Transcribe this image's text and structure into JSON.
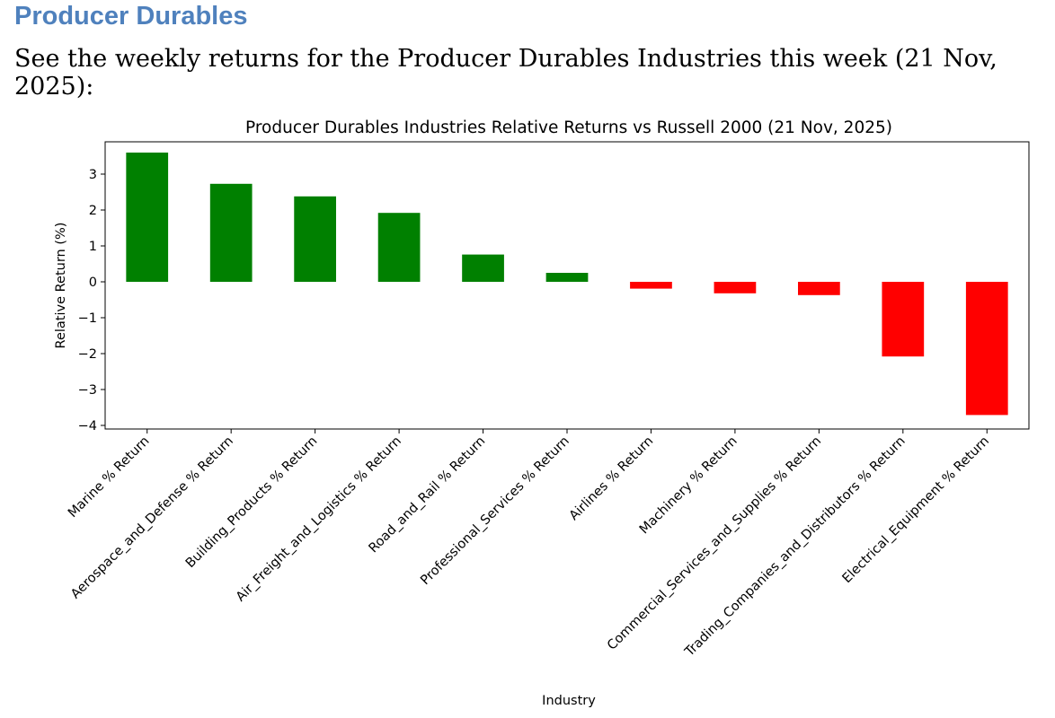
{
  "section": {
    "heading": "Producer Durables",
    "intro": "See the weekly returns for the Producer Durables Industries this week (21 Nov, 2025):"
  },
  "colors": {
    "heading": "#4f81bd",
    "positive": "#008000",
    "negative": "#ff0000"
  },
  "chart_data": {
    "type": "bar",
    "title": "Producer Durables Industries Relative Returns vs Russell 2000 (21 Nov, 2025)",
    "xlabel": "Industry",
    "ylabel": "Relative Return (%)",
    "ylim": [
      -4.1,
      3.9
    ],
    "yticks": [
      3,
      2,
      1,
      0,
      -1,
      -2,
      -3,
      -4
    ],
    "ytick_labels": [
      "3",
      "2",
      "1",
      "0",
      "−1",
      "−2",
      "−3",
      "−4"
    ],
    "categories": [
      "Marine % Return",
      "Aerospace_and_Defense % Return",
      "Building_Products % Return",
      "Air_Freight_and_Logistics % Return",
      "Road_and_Rail % Return",
      "Professional_Services % Return",
      "Airlines % Return",
      "Machinery % Return",
      "Commercial_Services_and_Supplies % Return",
      "Trading_Companies_and_Distributors % Return",
      "Electrical_Equipment % Return"
    ],
    "values": [
      3.6,
      2.73,
      2.38,
      1.92,
      0.76,
      0.25,
      -0.19,
      -0.32,
      -0.37,
      -2.08,
      -3.71
    ]
  }
}
